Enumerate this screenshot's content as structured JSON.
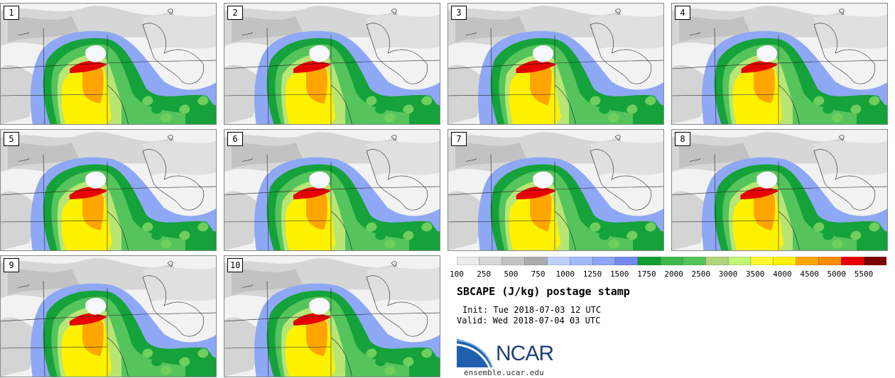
{
  "panels": [
    {
      "label": "1",
      "intensity": 0.55
    },
    {
      "label": "2",
      "intensity": 0.6
    },
    {
      "label": "3",
      "intensity": 0.9
    },
    {
      "label": "4",
      "intensity": 0.5
    },
    {
      "label": "5",
      "intensity": 0.65
    },
    {
      "label": "6",
      "intensity": 0.6
    },
    {
      "label": "7",
      "intensity": 0.85
    },
    {
      "label": "8",
      "intensity": 0.7
    },
    {
      "label": "9",
      "intensity": 0.6
    },
    {
      "label": "10",
      "intensity": 0.6
    }
  ],
  "colorbar": {
    "colors": [
      "#ececec",
      "#d8d8d8",
      "#c4c4c4",
      "#acacac",
      "#bfcfff",
      "#9fb9ff",
      "#8ea6f9",
      "#7489ee",
      "#0f9c2f",
      "#3cb94a",
      "#54c458",
      "#b3d47b",
      "#c4f577",
      "#fff92e",
      "#fff200",
      "#ffa500",
      "#ff8c00",
      "#e60000",
      "#7d0000"
    ],
    "labels": [
      "100",
      "250",
      "500",
      "750",
      "1000",
      "1250",
      "1500",
      "1750",
      "2000",
      "2500",
      "3000",
      "3500",
      "4000",
      "4500",
      "5000",
      "5500"
    ]
  },
  "title": "SBCAPE (J/kg) postage stamp",
  "init": "Init: Tue 2018-07-03 12 UTC",
  "valid": "Valid: Wed 2018-07-04 03 UTC",
  "logo": {
    "name": "NCAR",
    "url": "ensemble.ucar.edu"
  }
}
